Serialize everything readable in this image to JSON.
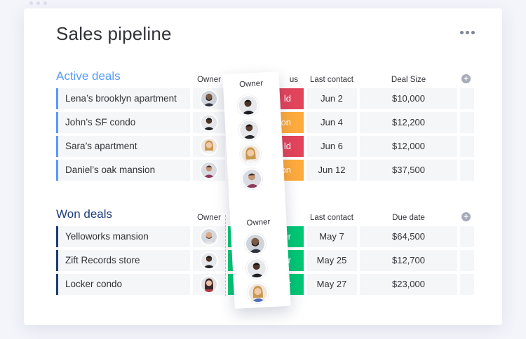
{
  "page": {
    "title": "Sales pipeline",
    "more_icon": "more-horizontal-icon"
  },
  "colors": {
    "active_group": "#579bfc",
    "won_group": "#1b3d7a",
    "status_red": "#e2445c",
    "status_orange": "#fdab3d",
    "status_green": "#00c875"
  },
  "active": {
    "title": "Active deals",
    "columns": {
      "owner": "Owner",
      "status_fragment": "us",
      "last_contact": "Last contact",
      "deal_size": "Deal Size"
    },
    "rows": [
      {
        "name": "Lena’s brooklyn apartment",
        "status": "ld",
        "status_color": "#e2445c",
        "date": "Jun 2",
        "amount": "$10,000"
      },
      {
        "name": "John’s SF condo",
        "status": "ation",
        "status_color": "#fdab3d",
        "date": "Jun 4",
        "amount": "$12,200"
      },
      {
        "name": "Sara’s apartment",
        "status": "ld",
        "status_color": "#e2445c",
        "date": "Jun 6",
        "amount": "$12,000"
      },
      {
        "name": "Daniel’s oak mansion",
        "status": "ation",
        "status_color": "#fdab3d",
        "date": "Jun 12",
        "amount": "$37,500"
      }
    ]
  },
  "won": {
    "title": "Won deals",
    "columns": {
      "owner": "Owner",
      "last_contact": "Last contact",
      "due_date": "Due date"
    },
    "rows": [
      {
        "name": "Yelloworks mansion",
        "status": "offer",
        "status_color": "#00c875",
        "date": "May 7",
        "amount": "$64,500"
      },
      {
        "name": "Zift Records store",
        "status": "offer",
        "status_color": "#00c875",
        "date": "May 25",
        "amount": "$12,700"
      },
      {
        "name": "Locker condo",
        "status": "offer",
        "status_color": "#00c875",
        "date": "May 27",
        "amount": "$23,000"
      }
    ]
  },
  "drag_column": {
    "top_header": "Owner",
    "bottom_header": "Owner"
  }
}
